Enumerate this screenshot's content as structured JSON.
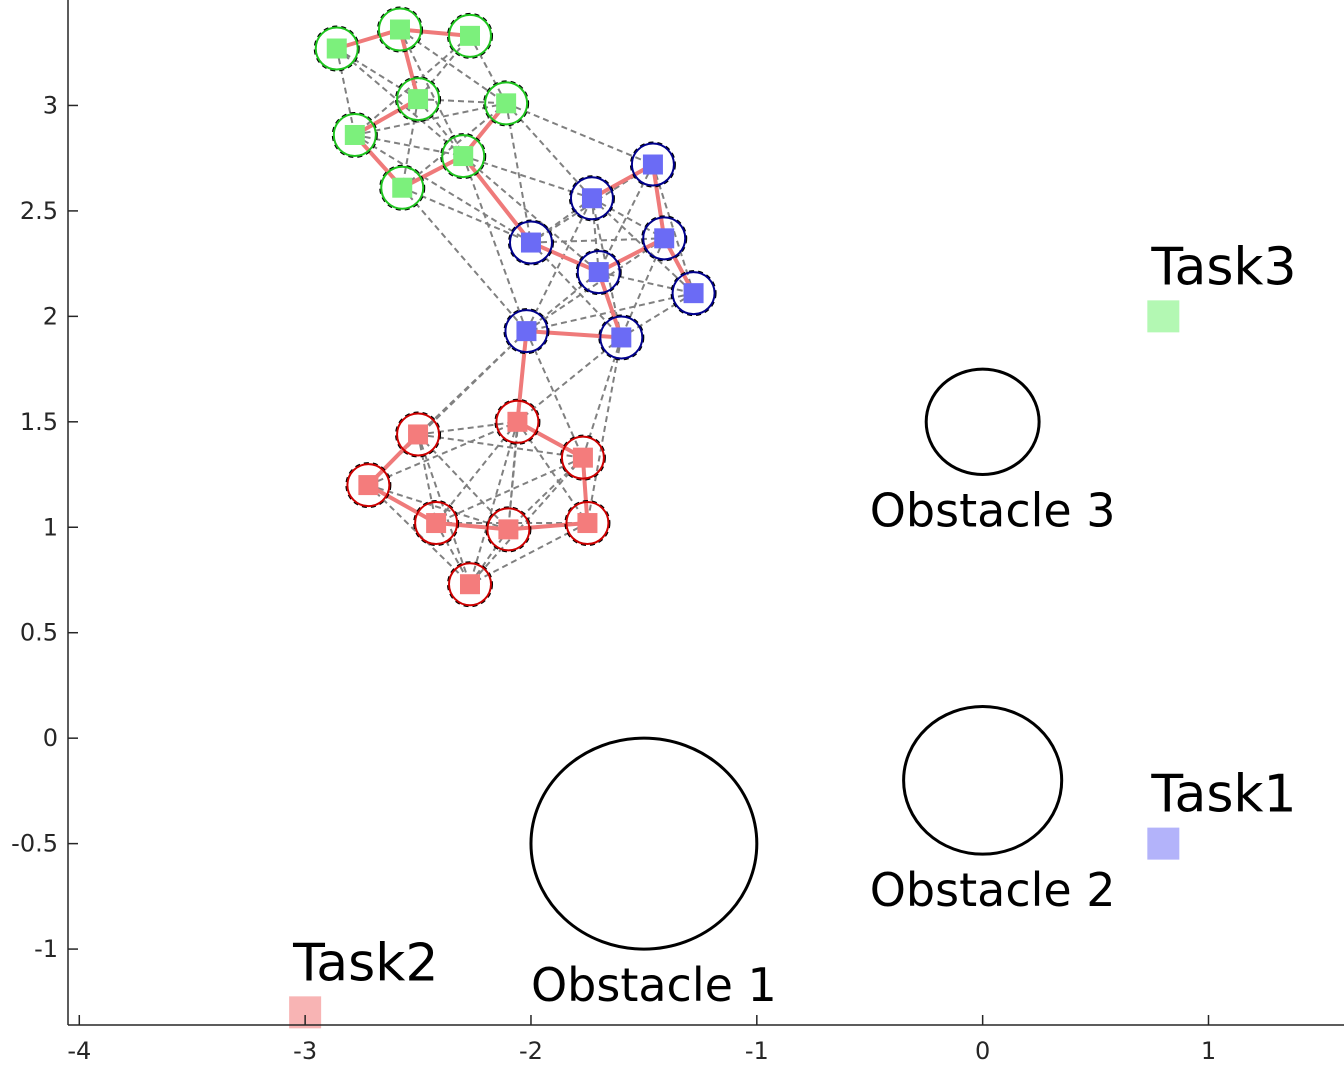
{
  "chart_data": {
    "type": "scatter",
    "title": "",
    "xlabel": "",
    "ylabel": "",
    "xlim": [
      -4.05,
      1.6
    ],
    "ylim": [
      -1.36,
      3.5
    ],
    "xticks": [
      -4,
      -3,
      -2,
      -1,
      0,
      1
    ],
    "yticks": [
      -1,
      -0.5,
      0,
      0.5,
      1,
      1.5,
      2,
      2.5,
      3
    ],
    "grid": false,
    "colors": {
      "red_fill": "#f47c7c",
      "red_ring": "#cc0000",
      "blue_fill": "#6b6bf5",
      "blue_ring": "#00008b",
      "green_fill": "#7cf07c",
      "green_ring": "#1ec41e",
      "chain": "#ef7a7a",
      "link": "#808080",
      "task1": "#b3b3fa",
      "task2": "#f8b4b4",
      "task3": "#b3f8b3"
    },
    "swarms": [
      {
        "name": "red",
        "points": [
          [
            -2.72,
            1.2
          ],
          [
            -2.5,
            1.44
          ],
          [
            -2.06,
            1.5
          ],
          [
            -1.77,
            1.33
          ],
          [
            -2.42,
            1.02
          ],
          [
            -2.1,
            0.99
          ],
          [
            -1.75,
            1.02
          ],
          [
            -2.27,
            0.73
          ]
        ],
        "chain": [
          [
            -2.5,
            1.44
          ],
          [
            -2.72,
            1.2
          ],
          [
            -2.42,
            1.02
          ],
          [
            -2.1,
            0.99
          ],
          [
            -1.75,
            1.02
          ],
          [
            -1.77,
            1.33
          ],
          [
            -2.06,
            1.5
          ],
          [
            -2.02,
            1.93
          ]
        ]
      },
      {
        "name": "blue",
        "points": [
          [
            -1.73,
            2.56
          ],
          [
            -1.46,
            2.72
          ],
          [
            -2.0,
            2.35
          ],
          [
            -1.7,
            2.21
          ],
          [
            -1.41,
            2.37
          ],
          [
            -1.28,
            2.11
          ],
          [
            -2.02,
            1.93
          ],
          [
            -1.6,
            1.9
          ]
        ],
        "chain": [
          [
            -1.73,
            2.56
          ],
          [
            -1.46,
            2.72
          ],
          [
            -1.41,
            2.37
          ],
          [
            -1.28,
            2.11
          ],
          [
            -1.41,
            2.37
          ],
          [
            -1.7,
            2.21
          ],
          [
            -1.6,
            1.9
          ],
          [
            -2.02,
            1.93
          ],
          [
            -2.02,
            1.93
          ]
        ]
      },
      {
        "name": "green",
        "points": [
          [
            -2.86,
            3.27
          ],
          [
            -2.58,
            3.36
          ],
          [
            -2.27,
            3.33
          ],
          [
            -2.5,
            3.03
          ],
          [
            -2.11,
            3.01
          ],
          [
            -2.78,
            2.86
          ],
          [
            -2.3,
            2.76
          ],
          [
            -2.57,
            2.61
          ]
        ],
        "chain": [
          [
            -2.86,
            3.27
          ],
          [
            -2.58,
            3.36
          ],
          [
            -2.27,
            3.33
          ],
          [
            -2.58,
            3.36
          ],
          [
            -2.5,
            3.03
          ],
          [
            -2.78,
            2.86
          ],
          [
            -2.57,
            2.61
          ],
          [
            -2.3,
            2.76
          ],
          [
            -2.11,
            3.01
          ],
          [
            -2.3,
            2.76
          ],
          [
            -2.0,
            2.35
          ],
          [
            -1.7,
            2.21
          ]
        ]
      }
    ],
    "connections": [
      [
        -2.5,
        3.03,
        -2.27,
        3.33
      ],
      [
        -2.5,
        3.03,
        -2.11,
        3.01
      ],
      [
        -2.5,
        3.03,
        -2.3,
        2.76
      ],
      [
        -2.5,
        3.03,
        -2.57,
        2.61
      ],
      [
        -2.5,
        3.03,
        -2.86,
        3.27
      ],
      [
        -2.5,
        3.03,
        -2.78,
        2.86
      ],
      [
        -2.86,
        3.27,
        -2.78,
        2.86
      ],
      [
        -2.86,
        3.27,
        -2.3,
        2.76
      ],
      [
        -2.58,
        3.36,
        -2.11,
        3.01
      ],
      [
        -2.58,
        3.36,
        -2.3,
        2.76
      ],
      [
        -2.27,
        3.33,
        -2.11,
        3.01
      ],
      [
        -2.27,
        3.33,
        -2.78,
        2.86
      ],
      [
        -2.78,
        2.86,
        -2.3,
        2.76
      ],
      [
        -2.78,
        2.86,
        -2.11,
        3.01
      ],
      [
        -2.57,
        2.61,
        -2.11,
        3.01
      ],
      [
        -2.57,
        2.61,
        -2.0,
        2.35
      ],
      [
        -2.57,
        2.61,
        -2.02,
        1.93
      ],
      [
        -2.78,
        2.86,
        -2.0,
        2.35
      ],
      [
        -2.3,
        2.76,
        -1.73,
        2.56
      ],
      [
        -2.3,
        2.76,
        -1.7,
        2.21
      ],
      [
        -2.11,
        3.01,
        -1.73,
        2.56
      ],
      [
        -2.11,
        3.01,
        -1.46,
        2.72
      ],
      [
        -2.11,
        3.01,
        -2.0,
        2.35
      ],
      [
        -2.3,
        2.76,
        -2.02,
        1.93
      ],
      [
        -2.0,
        2.35,
        -1.73,
        2.56
      ],
      [
        -2.0,
        2.35,
        -1.7,
        2.21
      ],
      [
        -2.0,
        2.35,
        -1.6,
        1.9
      ],
      [
        -2.0,
        2.35,
        -1.41,
        2.37
      ],
      [
        -1.73,
        2.56,
        -1.7,
        2.21
      ],
      [
        -1.73,
        2.56,
        -1.41,
        2.37
      ],
      [
        -1.73,
        2.56,
        -1.28,
        2.11
      ],
      [
        -1.46,
        2.72,
        -1.7,
        2.21
      ],
      [
        -1.46,
        2.72,
        -1.28,
        2.11
      ],
      [
        -1.46,
        2.72,
        -2.0,
        2.35
      ],
      [
        -1.7,
        2.21,
        -1.28,
        2.11
      ],
      [
        -1.7,
        2.21,
        -2.02,
        1.93
      ],
      [
        -1.41,
        2.37,
        -1.6,
        1.9
      ],
      [
        -1.41,
        2.37,
        -2.02,
        1.93
      ],
      [
        -1.28,
        2.11,
        -1.6,
        1.9
      ],
      [
        -1.28,
        2.11,
        -2.02,
        1.93
      ],
      [
        -2.02,
        1.93,
        -1.73,
        2.56
      ],
      [
        -1.6,
        1.9,
        -1.73,
        2.56
      ],
      [
        -2.02,
        1.93,
        -2.5,
        1.44
      ],
      [
        -2.02,
        1.93,
        -2.72,
        1.2
      ],
      [
        -2.02,
        1.93,
        -1.77,
        1.33
      ],
      [
        -2.02,
        1.93,
        -2.1,
        0.99
      ],
      [
        -1.6,
        1.9,
        -2.06,
        1.5
      ],
      [
        -1.6,
        1.9,
        -1.77,
        1.33
      ],
      [
        -1.6,
        1.9,
        -1.75,
        1.02
      ],
      [
        -2.5,
        1.44,
        -2.06,
        1.5
      ],
      [
        -2.5,
        1.44,
        -2.42,
        1.02
      ],
      [
        -2.5,
        1.44,
        -2.1,
        0.99
      ],
      [
        -2.5,
        1.44,
        -2.27,
        0.73
      ],
      [
        -2.5,
        1.44,
        -1.77,
        1.33
      ],
      [
        -2.72,
        1.2,
        -2.06,
        1.5
      ],
      [
        -2.72,
        1.2,
        -2.1,
        0.99
      ],
      [
        -2.72,
        1.2,
        -2.27,
        0.73
      ],
      [
        -2.06,
        1.5,
        -2.42,
        1.02
      ],
      [
        -2.06,
        1.5,
        -2.1,
        0.99
      ],
      [
        -2.06,
        1.5,
        -1.75,
        1.02
      ],
      [
        -2.06,
        1.5,
        -2.27,
        0.73
      ],
      [
        -1.77,
        1.33,
        -2.42,
        1.02
      ],
      [
        -1.77,
        1.33,
        -2.1,
        0.99
      ],
      [
        -1.77,
        1.33,
        -2.27,
        0.73
      ],
      [
        -2.42,
        1.02,
        -2.27,
        0.73
      ],
      [
        -2.1,
        0.99,
        -2.27,
        0.73
      ],
      [
        -1.75,
        1.02,
        -2.27,
        0.73
      ],
      [
        -2.42,
        1.02,
        -1.75,
        1.02
      ]
    ],
    "obstacles": [
      {
        "label": "Obstacle 1",
        "cx": -1.5,
        "cy": -0.5,
        "r": 0.5
      },
      {
        "label": "Obstacle 2",
        "cx": 0.0,
        "cy": -0.2,
        "r": 0.35
      },
      {
        "label": "Obstacle 3",
        "cx": 0.0,
        "cy": 1.5,
        "r": 0.25
      }
    ],
    "tasks": [
      {
        "label": "Task1",
        "x": 0.8,
        "y": -0.5,
        "color": "task1"
      },
      {
        "label": "Task2",
        "x": -3.0,
        "y": -1.3,
        "color": "task2"
      },
      {
        "label": "Task3",
        "x": 0.8,
        "y": 2.0,
        "color": "task3"
      }
    ]
  }
}
